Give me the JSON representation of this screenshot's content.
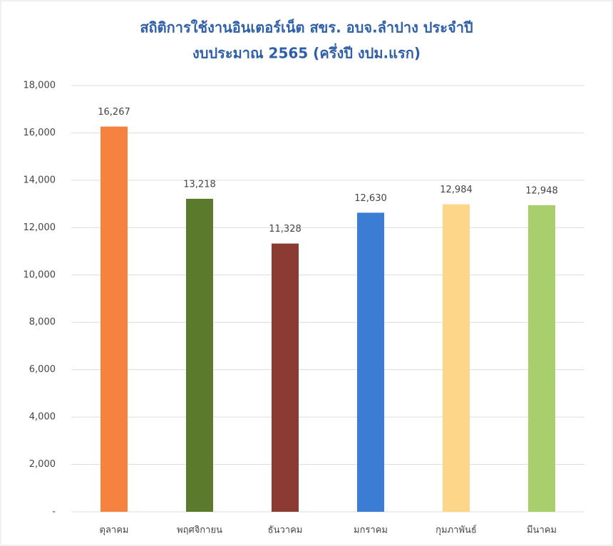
{
  "chart_data": {
    "type": "bar",
    "title": [
      "สถิติการใช้งานอินเตอร์เน็ต สขร. อบจ.ลำปาง ประจำปี",
      "งบประมาณ 2565 (ครึ่งปี งปม.แรก)"
    ],
    "categories": [
      "ตุลาคม",
      "พฤศจิกายน",
      "ธันวาคม",
      "มกราคม",
      "กุมภาพันธ์",
      "มีนาคม"
    ],
    "values": [
      16267,
      13218,
      11328,
      12630,
      12984,
      12948
    ],
    "value_labels": [
      "16,267",
      "13,218",
      "11,328",
      "12,630",
      "12,984",
      "12,948"
    ],
    "colors": [
      "#f5833f",
      "#5b7a2c",
      "#8b3b31",
      "#3b7cd4",
      "#fdd68a",
      "#a8cf6b"
    ],
    "ylim": [
      0,
      18000
    ],
    "yticks": [
      {
        "value": 0,
        "label": "-"
      },
      {
        "value": 2000,
        "label": "2,000"
      },
      {
        "value": 4000,
        "label": "4,000"
      },
      {
        "value": 6000,
        "label": "6,000"
      },
      {
        "value": 8000,
        "label": "8,000"
      },
      {
        "value": 10000,
        "label": "10,000"
      },
      {
        "value": 12000,
        "label": "12,000"
      },
      {
        "value": 14000,
        "label": "14,000"
      },
      {
        "value": 16000,
        "label": "16,000"
      },
      {
        "value": 18000,
        "label": "18,000"
      }
    ],
    "grid": true
  }
}
